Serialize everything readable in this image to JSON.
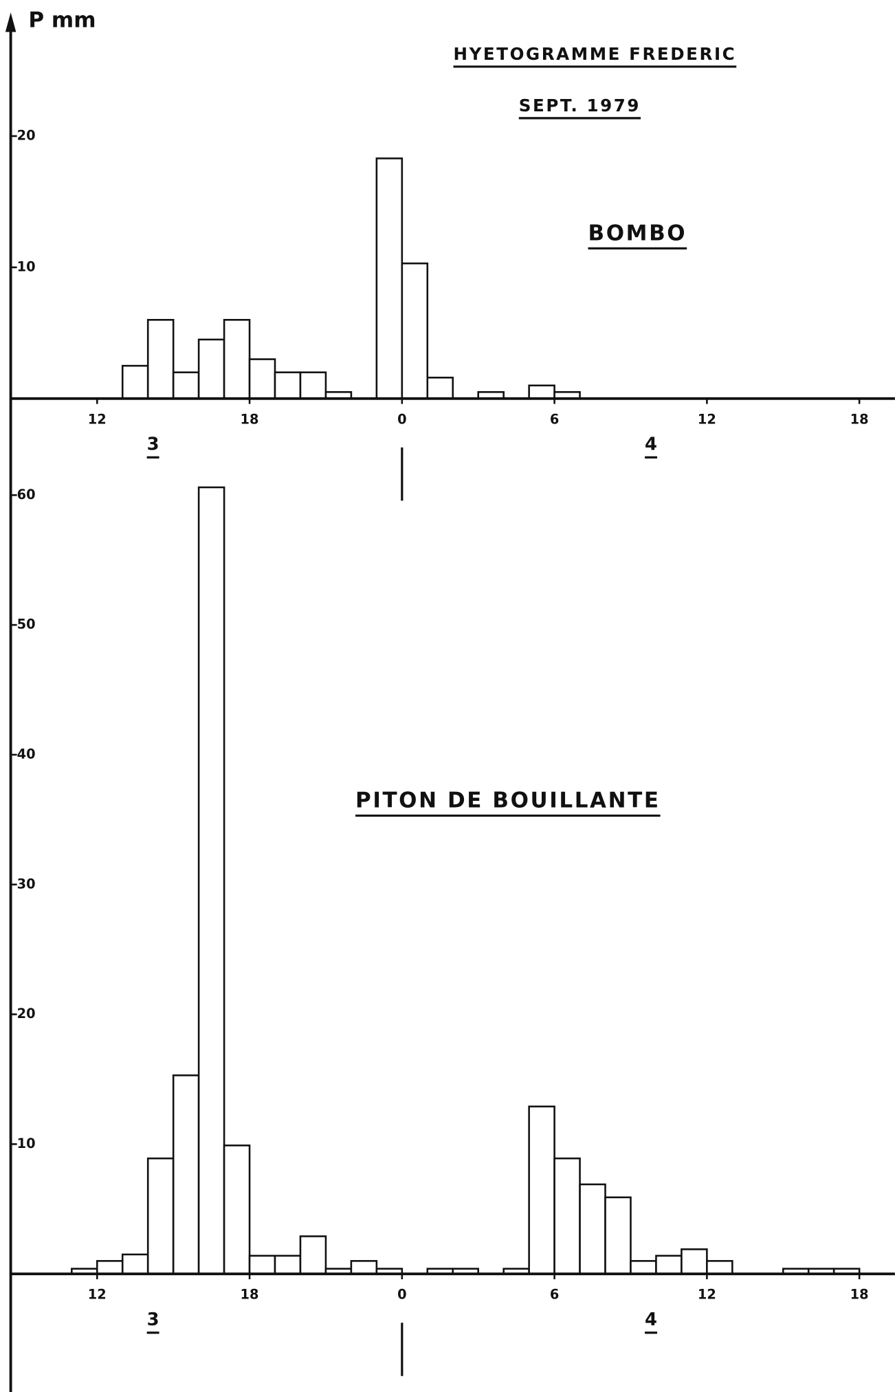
{
  "title": "HYETOGRAMME FREDERIC",
  "subtitle": "SEPT. 1979",
  "y_label": "P mm",
  "day_labels": [
    "3",
    "4"
  ],
  "chart_data": [
    {
      "type": "histogram",
      "title": "BOMBO",
      "bins": [
        13,
        14,
        15,
        16,
        17,
        18,
        19,
        20,
        21,
        22,
        23,
        24,
        25,
        26,
        27,
        28,
        29,
        30,
        31
      ],
      "values": [
        2.5,
        6,
        2,
        4.5,
        6,
        3,
        2,
        2,
        0.5,
        0,
        18.3,
        10.3,
        1.6,
        0,
        0.5,
        0,
        1,
        0.5
      ],
      "xlim": [
        8.6,
        43.4
      ],
      "xticks": [
        12,
        18,
        {
          "value": 24,
          "label": "0"
        },
        {
          "value": 30,
          "label": "6"
        },
        {
          "value": 36,
          "label": "12"
        },
        {
          "value": 42,
          "label": "18"
        }
      ],
      "ylim": [
        0,
        28
      ],
      "yticks": [
        10,
        20
      ],
      "color": "#ffffff"
    },
    {
      "type": "histogram",
      "title": "PITON DE BOUILLANTE",
      "bins": [
        11,
        12,
        13,
        14,
        15,
        16,
        17,
        18,
        19,
        20,
        21,
        22,
        23,
        24,
        25,
        26,
        27,
        28,
        29,
        30,
        31,
        32,
        33,
        34,
        35,
        36,
        37,
        38,
        39,
        40,
        41,
        42
      ],
      "values": [
        0.4,
        1,
        1.5,
        8.9,
        15.3,
        60.6,
        9.9,
        1.4,
        1.4,
        2.9,
        0.4,
        1,
        0.4,
        0,
        0.4,
        0.4,
        0,
        0.4,
        12.9,
        8.9,
        6.9,
        5.9,
        1,
        1.4,
        1.9,
        1,
        0,
        0,
        0.4,
        0.4,
        0.4
      ],
      "xlim": [
        8.6,
        43.4
      ],
      "xticks": [
        12,
        18,
        {
          "value": 24,
          "label": "0"
        },
        {
          "value": 30,
          "label": "6"
        },
        {
          "value": 36,
          "label": "12"
        },
        {
          "value": 42,
          "label": "18"
        }
      ],
      "ylim": [
        0,
        66
      ],
      "yticks": [
        10,
        20,
        30,
        40,
        50,
        60
      ],
      "color": "#ffffff"
    }
  ]
}
